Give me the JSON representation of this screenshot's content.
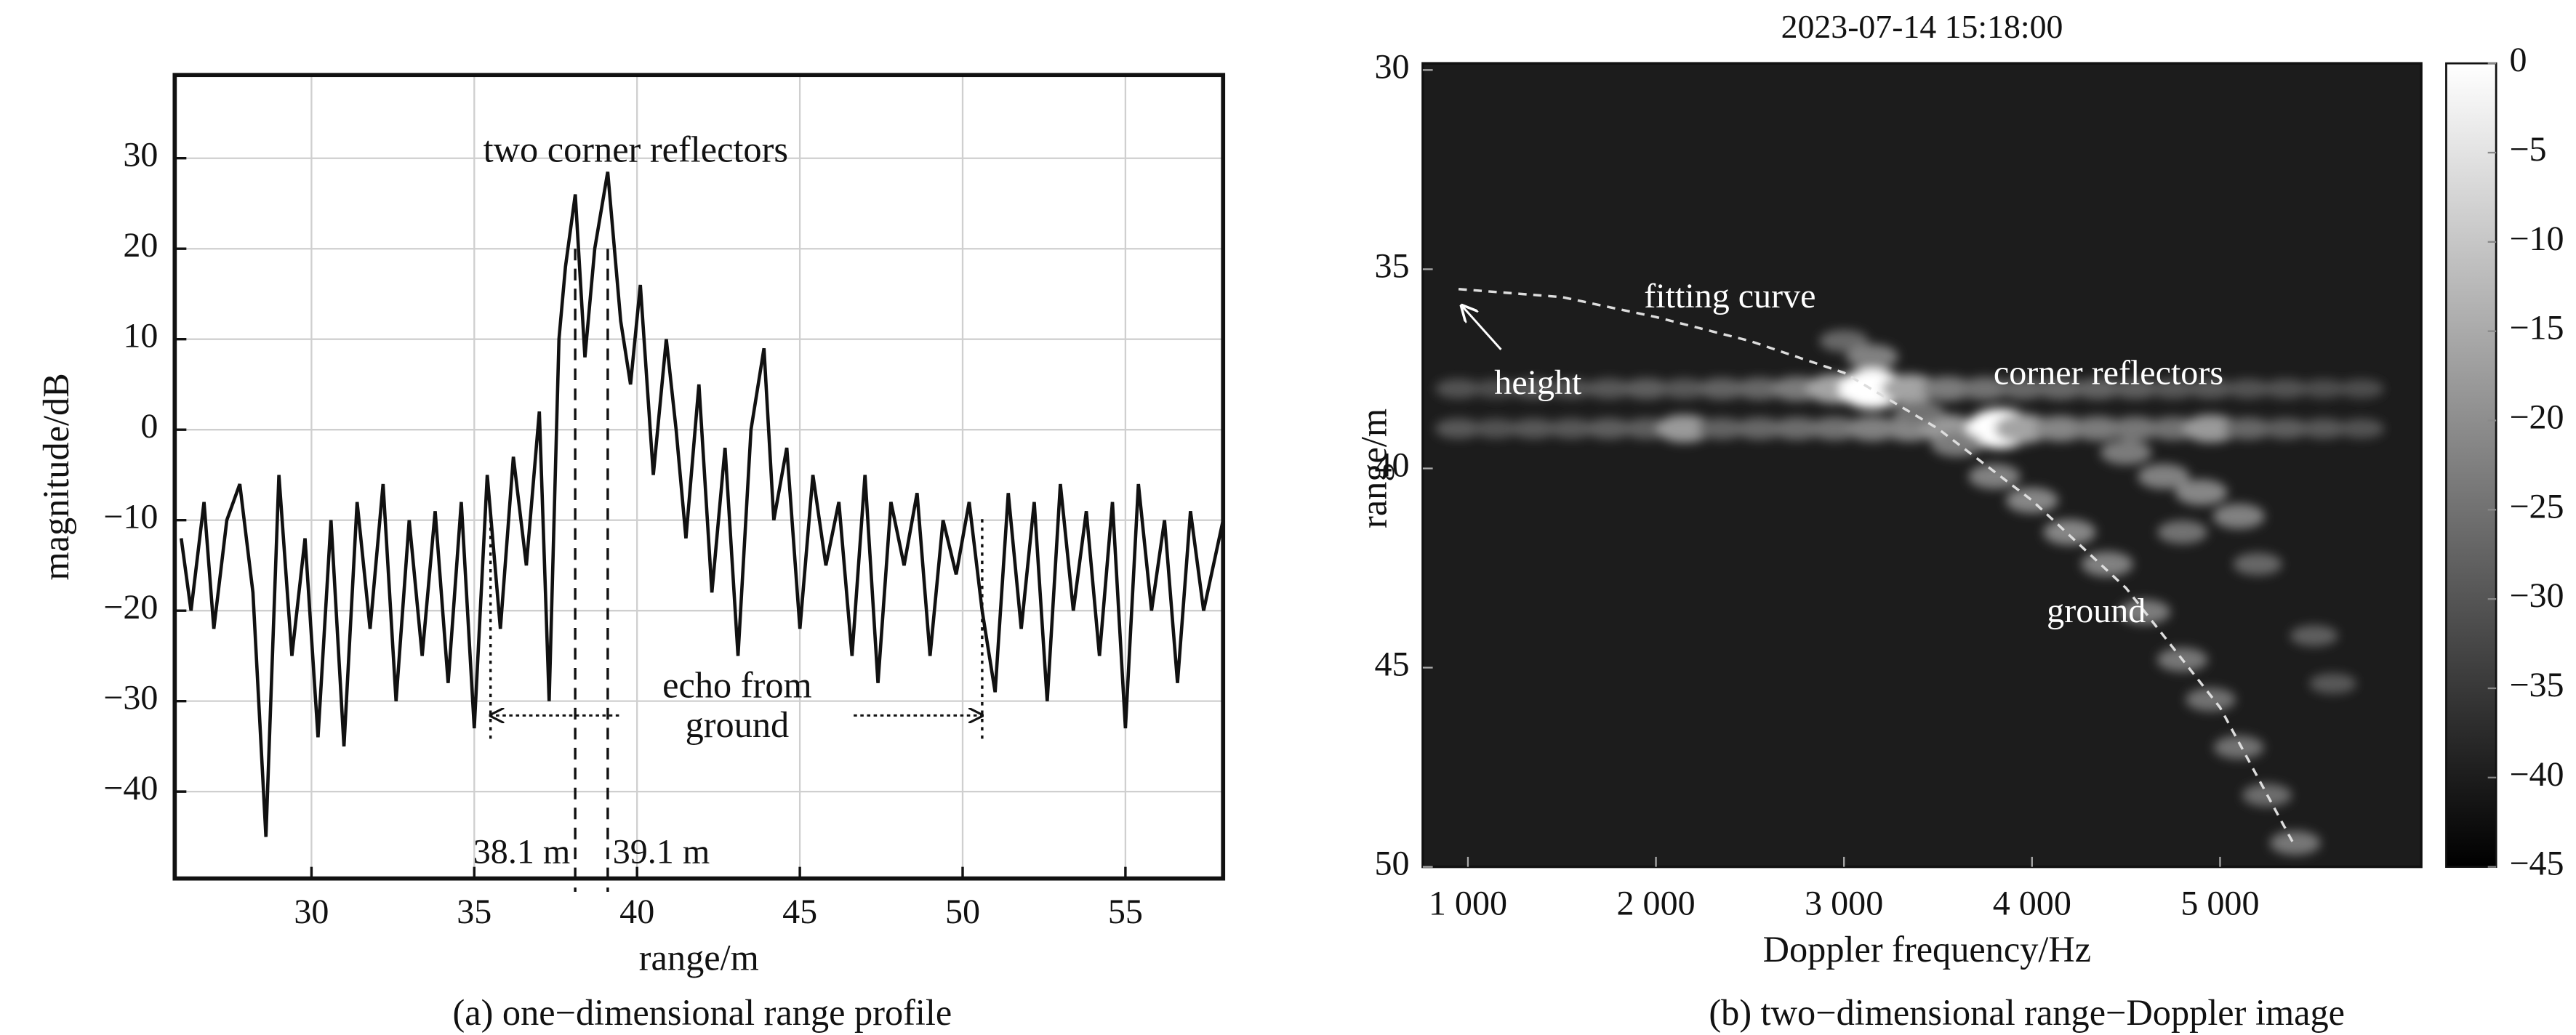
{
  "chart_data": [
    {
      "type": "line",
      "caption": "(a) one−dimensional range profile",
      "xlabel": "range/m",
      "ylabel": "magnitude/dB",
      "xlim": [
        25.8,
        58
      ],
      "ylim": [
        -49.6,
        39.2
      ],
      "xticks": [
        30,
        35,
        40,
        45,
        50,
        55
      ],
      "yticks": [
        {
          "value": -40,
          "label": "−40"
        },
        {
          "value": -30,
          "label": "−30"
        },
        {
          "value": -20,
          "label": "−20"
        },
        {
          "value": -10,
          "label": "−10"
        },
        0,
        10,
        20,
        30
      ],
      "grid": true,
      "color": "#111111",
      "x": [
        26.0,
        26.3,
        26.7,
        27.0,
        27.4,
        27.8,
        28.2,
        28.6,
        29.0,
        29.4,
        29.8,
        30.2,
        30.6,
        31.0,
        31.4,
        31.8,
        32.2,
        32.6,
        33.0,
        33.4,
        33.8,
        34.2,
        34.6,
        35.0,
        35.4,
        35.8,
        36.2,
        36.6,
        37.0,
        37.3,
        37.6,
        37.8,
        38.1,
        38.4,
        38.7,
        39.1,
        39.5,
        39.8,
        40.1,
        40.5,
        40.9,
        41.2,
        41.5,
        41.9,
        42.3,
        42.7,
        43.1,
        43.5,
        43.9,
        44.2,
        44.6,
        45.0,
        45.4,
        45.8,
        46.2,
        46.6,
        47.0,
        47.4,
        47.8,
        48.2,
        48.6,
        49.0,
        49.4,
        49.8,
        50.2,
        50.6,
        51.0,
        51.4,
        51.8,
        52.2,
        52.6,
        53.0,
        53.4,
        53.8,
        54.2,
        54.6,
        55.0,
        55.4,
        55.8,
        56.2,
        56.6,
        57.0,
        57.4,
        58.0
      ],
      "values": [
        -12,
        -20,
        -8,
        -22,
        -10,
        -6,
        -18,
        -45,
        -5,
        -25,
        -12,
        -34,
        -10,
        -35,
        -8,
        -22,
        -6,
        -30,
        -10,
        -25,
        -9,
        -28,
        -8,
        -33,
        -5,
        -22,
        -3,
        -15,
        2,
        -30,
        10,
        18,
        26,
        8,
        20,
        28.5,
        12,
        5,
        16,
        -5,
        10,
        0,
        -12,
        5,
        -18,
        -2,
        -25,
        0,
        9,
        -10,
        -2,
        -22,
        -5,
        -15,
        -8,
        -25,
        -5,
        -28,
        -8,
        -15,
        -7,
        -25,
        -10,
        -16,
        -8,
        -20,
        -29,
        -7,
        -22,
        -8,
        -30,
        -6,
        -20,
        -9,
        -25,
        -8,
        -33,
        -6,
        -20,
        -10,
        -28,
        -9,
        -20,
        -10
      ],
      "annotations": [
        "two corner reflectors",
        "echo from",
        "ground"
      ],
      "markers": [
        {
          "value": 38.1,
          "label": "38.1 m"
        },
        {
          "value": 39.1,
          "label": "39.1 m"
        }
      ],
      "ground_span": [
        35.5,
        50.6
      ]
    },
    {
      "type": "heatmap",
      "title": "2023-07-14 15:18:00",
      "caption": "(b) two−dimensional range−Doppler image",
      "xlabel": "Doppler frequency/Hz",
      "ylabel": "range/m",
      "xlim": [
        760,
        6070
      ],
      "ylim": [
        30,
        50
      ],
      "invert_y": true,
      "xticks": [
        {
          "value": 1000,
          "label": "1 000"
        },
        {
          "value": 2000,
          "label": "2 000"
        },
        {
          "value": 3000,
          "label": "3 000"
        },
        {
          "value": 4000,
          "label": "4 000"
        },
        {
          "value": 5000,
          "label": "5 000"
        }
      ],
      "yticks": [
        30,
        35,
        40,
        45,
        50
      ],
      "clim": [
        -45,
        0
      ],
      "cticks": [
        0,
        {
          "value": -5,
          "label": "−5"
        },
        {
          "value": -10,
          "label": "−10"
        },
        {
          "value": -15,
          "label": "−15"
        },
        {
          "value": -20,
          "label": "−20"
        },
        {
          "value": -25,
          "label": "−25"
        },
        {
          "value": -30,
          "label": "−30"
        },
        {
          "value": -35,
          "label": "−35"
        },
        {
          "value": -40,
          "label": "−40"
        },
        {
          "value": -45,
          "label": "−45"
        }
      ],
      "x": [
        950,
        1150,
        1350,
        1550,
        1750,
        1950,
        2150,
        2350,
        2550,
        2750,
        2950,
        3150,
        3350,
        3550,
        3750,
        3950,
        4150,
        4350,
        4550,
        4750,
        4950,
        5150,
        5350,
        5550,
        5750,
        950,
        1150,
        1350,
        1550,
        1750,
        1950,
        2150,
        2350,
        2550,
        2750,
        2950,
        3150,
        3350,
        3550,
        3830,
        3950,
        4150,
        4350,
        4550,
        4750,
        4950,
        5150,
        5350,
        5550,
        5750,
        3400,
        3600,
        3800,
        4000,
        4200,
        4400,
        4600,
        4800,
        4950,
        5100,
        5250,
        5400,
        4500,
        4700,
        4900,
        5100,
        4800,
        5200,
        5500,
        5600,
        3000,
        3150,
        3150
      ],
      "y": [
        38,
        38,
        38,
        38,
        38,
        38,
        38,
        38,
        38,
        38,
        38,
        38,
        38,
        38,
        38,
        38,
        38,
        38,
        38,
        38,
        38,
        38,
        38,
        38,
        38,
        39,
        39,
        39,
        39,
        39,
        39,
        39,
        39,
        39,
        39,
        39,
        39,
        39,
        39,
        39,
        39,
        39,
        39,
        39,
        39,
        39,
        39,
        39,
        39,
        39,
        38.6,
        39.4,
        40.2,
        40.8,
        41.6,
        42.4,
        43.6,
        44.8,
        45.8,
        47,
        48.2,
        49.4,
        39.6,
        40.2,
        40.6,
        41.2,
        41.6,
        42.4,
        44.2,
        45.4,
        36.8,
        37.2,
        39
      ],
      "values": [
        -34,
        -35,
        -33,
        -34,
        -33,
        -32,
        -33,
        -31,
        -30,
        -26,
        -18,
        0,
        -18,
        -26,
        -28,
        -30,
        -30,
        -31,
        -32,
        -33,
        -33,
        -34,
        -34,
        -35,
        -35,
        -33,
        -34,
        -33,
        -33,
        -32,
        -32,
        -20,
        -31,
        -30,
        -29,
        -28,
        -26,
        -24,
        -20,
        0,
        -18,
        -24,
        -26,
        -27,
        -28,
        -20,
        -30,
        -32,
        -33,
        -34,
        -28,
        -26,
        -25,
        -24,
        -24,
        -25,
        -26,
        -27,
        -28,
        -28,
        -29,
        -27,
        -26,
        -25,
        -24,
        -25,
        -28,
        -30,
        -32,
        -33,
        -30,
        -25,
        -25
      ],
      "fit_x": [
        950,
        1500,
        2000,
        2500,
        3000,
        3500,
        4000,
        4500,
        5000,
        5400
      ],
      "fit_y": [
        35.5,
        35.7,
        36.2,
        36.8,
        37.6,
        39,
        40.8,
        43,
        46,
        49.5
      ],
      "annotations": [
        "fitting curve",
        "height",
        "corner reflectors",
        "ground"
      ]
    }
  ]
}
